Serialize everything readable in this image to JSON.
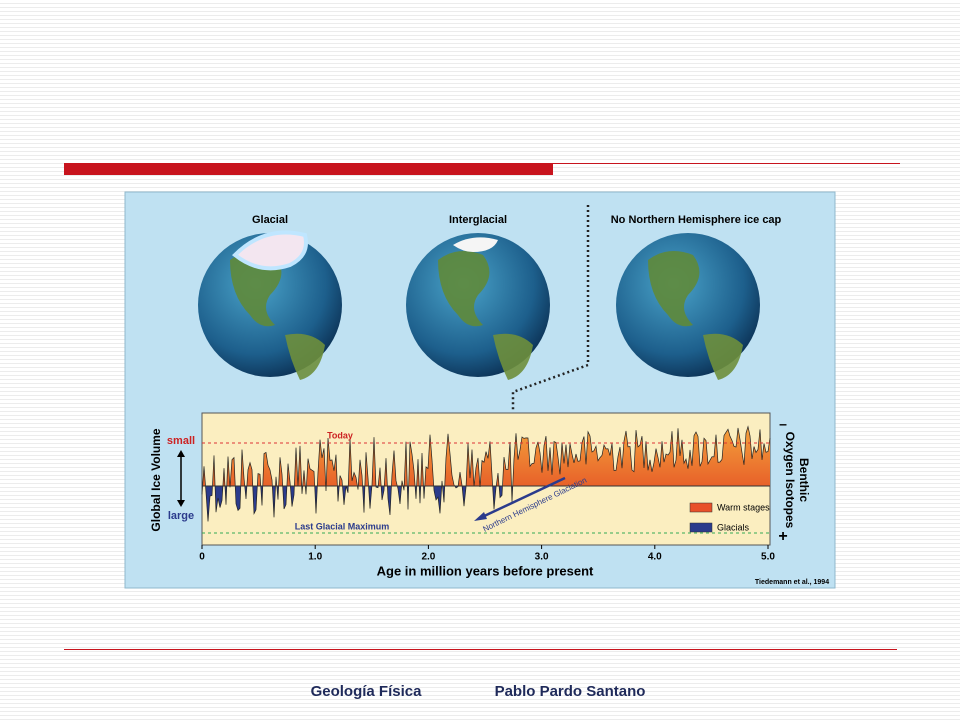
{
  "globes": [
    {
      "label": "Glacial"
    },
    {
      "label": "Interglacial"
    },
    {
      "label": "No Northern Hemisphere ice cap"
    }
  ],
  "chart_data": {
    "type": "line",
    "x_label": "Age in million years before present",
    "y_label": "Global Ice Volume",
    "y_small": "small",
    "y_large": "large",
    "y2_label": [
      "Benthic",
      "Oxygen Isotopes"
    ],
    "y2_top": "–",
    "y2_bottom": "+",
    "annotations": {
      "today": "Today",
      "lgm": "Last Glacial Maximum",
      "nhg": "Northern Hemisphere Glaciation"
    },
    "legend": [
      {
        "label": "Warm stages",
        "color": "#e8502a"
      },
      {
        "label": "Glacials",
        "color": "#2b3b8c"
      }
    ],
    "source": "Tiedemann et al., 1994",
    "xlim": [
      0,
      5
    ],
    "xticks": [
      0,
      {
        "value": 1,
        "label": "1.0"
      },
      {
        "value": 2,
        "label": "2.0"
      },
      {
        "value": 3,
        "label": "3.0"
      },
      {
        "value": 4,
        "label": "4.0"
      },
      {
        "value": 5,
        "label": "5.0"
      }
    ]
  },
  "slide": {
    "footer_left": "Geología Física",
    "footer_right": "Pablo Pardo Santano"
  }
}
